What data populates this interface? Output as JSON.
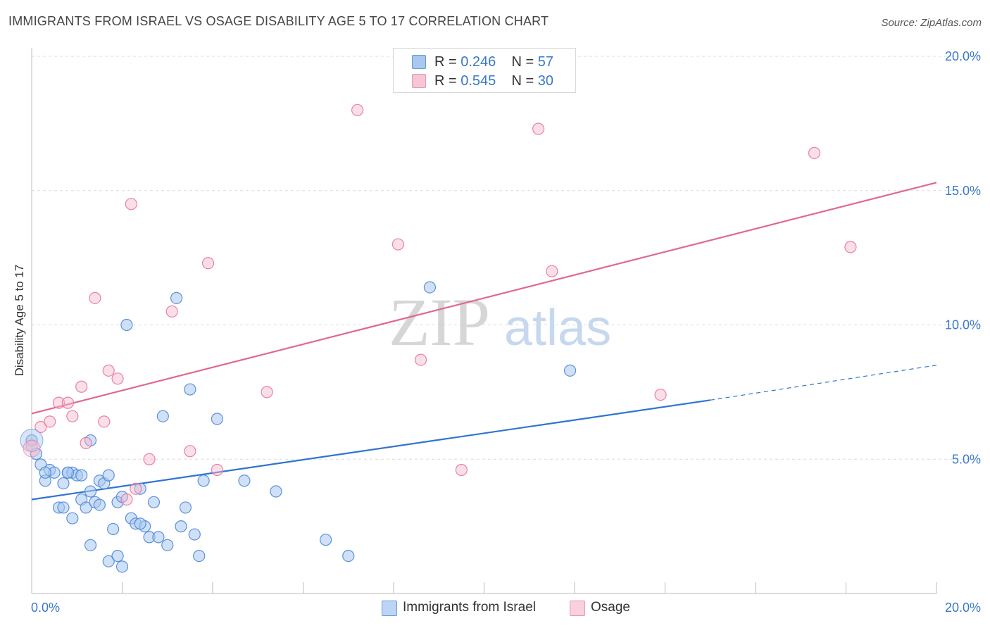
{
  "header": {
    "title": "IMMIGRANTS FROM ISRAEL VS OSAGE DISABILITY AGE 5 TO 17 CORRELATION CHART",
    "source": "Source: ZipAtlas.com"
  },
  "watermark": {
    "part1": "ZIP",
    "part2": "atlas"
  },
  "legend_top": [
    {
      "r_label": "R = ",
      "r_value": "0.246",
      "n_label": "N = ",
      "n_value": "57",
      "color": "#a9c8f0"
    },
    {
      "r_label": "R = ",
      "r_value": "0.545",
      "n_label": "N = ",
      "n_value": "30",
      "color": "#f6b8cc"
    }
  ],
  "legend_bottom": [
    {
      "label": "Immigrants from Israel",
      "color": "#a9c8f0"
    },
    {
      "label": "Osage",
      "color": "#f6b8cc"
    }
  ],
  "chart_data": {
    "type": "scatter",
    "title": "IMMIGRANTS FROM ISRAEL VS OSAGE DISABILITY AGE 5 TO 17 CORRELATION CHART",
    "xlabel": "",
    "ylabel": "Disability Age 5 to 17",
    "xlim": [
      0,
      20
    ],
    "ylim": [
      0,
      20
    ],
    "x_tick_labels": [
      {
        "value": 0,
        "label": "0.0%"
      },
      {
        "value": 20,
        "label": "20.0%"
      }
    ],
    "y_tick_labels": [
      {
        "value": 5,
        "label": "5.0%"
      },
      {
        "value": 10,
        "label": "10.0%"
      },
      {
        "value": 15,
        "label": "15.0%"
      },
      {
        "value": 20,
        "label": "20.0%"
      }
    ],
    "grid": true,
    "legend_position": "top-center",
    "series": [
      {
        "name": "Immigrants from Israel",
        "color": "#4a86d8",
        "fill": "#a9c8f0",
        "trend": {
          "x0": 0,
          "y0": 3.5,
          "x1": 15,
          "y1": 7.2,
          "dashed_to_x": 20,
          "dashed_to_y": 8.5
        },
        "points": [
          [
            0.0,
            5.7
          ],
          [
            0.1,
            5.2
          ],
          [
            0.2,
            4.8
          ],
          [
            0.3,
            4.2
          ],
          [
            0.4,
            4.6
          ],
          [
            0.5,
            4.5
          ],
          [
            0.3,
            4.5
          ],
          [
            0.7,
            4.1
          ],
          [
            0.8,
            4.5
          ],
          [
            0.9,
            4.5
          ],
          [
            1.0,
            4.4
          ],
          [
            0.6,
            3.2
          ],
          [
            0.7,
            3.2
          ],
          [
            0.9,
            2.8
          ],
          [
            1.1,
            3.5
          ],
          [
            1.2,
            3.2
          ],
          [
            1.3,
            3.8
          ],
          [
            1.4,
            3.4
          ],
          [
            1.5,
            4.2
          ],
          [
            1.6,
            4.1
          ],
          [
            1.7,
            4.4
          ],
          [
            1.3,
            5.7
          ],
          [
            1.8,
            2.4
          ],
          [
            1.9,
            3.4
          ],
          [
            2.0,
            3.6
          ],
          [
            2.2,
            2.8
          ],
          [
            2.3,
            2.6
          ],
          [
            2.4,
            3.9
          ],
          [
            2.5,
            2.5
          ],
          [
            2.6,
            2.1
          ],
          [
            2.7,
            3.4
          ],
          [
            2.8,
            2.1
          ],
          [
            2.9,
            6.6
          ],
          [
            3.0,
            1.8
          ],
          [
            3.2,
            11.0
          ],
          [
            3.3,
            2.5
          ],
          [
            3.4,
            3.2
          ],
          [
            3.5,
            7.6
          ],
          [
            3.6,
            2.2
          ],
          [
            3.7,
            1.4
          ],
          [
            3.8,
            4.2
          ],
          [
            4.1,
            6.5
          ],
          [
            4.7,
            4.2
          ],
          [
            5.4,
            3.8
          ],
          [
            6.5,
            2.0
          ],
          [
            7.0,
            1.4
          ],
          [
            8.8,
            11.4
          ],
          [
            11.9,
            8.3
          ],
          [
            1.3,
            1.8
          ],
          [
            1.7,
            1.2
          ],
          [
            1.9,
            1.4
          ],
          [
            2.0,
            1.0
          ],
          [
            2.1,
            10.0
          ],
          [
            2.4,
            2.6
          ],
          [
            1.1,
            4.4
          ],
          [
            0.8,
            4.5
          ],
          [
            1.5,
            3.3
          ]
        ]
      },
      {
        "name": "Osage",
        "color": "#e8749a",
        "fill": "#f6b8cc",
        "trend": {
          "x0": 0,
          "y0": 6.7,
          "x1": 20,
          "y1": 15.3
        },
        "points": [
          [
            0.0,
            5.5
          ],
          [
            0.2,
            6.2
          ],
          [
            0.4,
            6.4
          ],
          [
            0.6,
            7.1
          ],
          [
            0.8,
            7.1
          ],
          [
            0.9,
            6.6
          ],
          [
            1.1,
            7.7
          ],
          [
            1.2,
            5.6
          ],
          [
            1.4,
            11.0
          ],
          [
            1.6,
            6.4
          ],
          [
            1.7,
            8.3
          ],
          [
            1.9,
            8.0
          ],
          [
            2.1,
            3.5
          ],
          [
            2.2,
            14.5
          ],
          [
            2.3,
            3.9
          ],
          [
            2.6,
            5.0
          ],
          [
            3.1,
            10.5
          ],
          [
            3.5,
            5.3
          ],
          [
            3.9,
            12.3
          ],
          [
            4.1,
            4.6
          ],
          [
            5.2,
            7.5
          ],
          [
            7.2,
            18.0
          ],
          [
            8.1,
            13.0
          ],
          [
            8.6,
            8.7
          ],
          [
            9.5,
            4.6
          ],
          [
            11.2,
            17.3
          ],
          [
            11.5,
            12.0
          ],
          [
            13.9,
            7.4
          ],
          [
            17.3,
            16.4
          ],
          [
            18.1,
            12.9
          ]
        ]
      }
    ]
  }
}
